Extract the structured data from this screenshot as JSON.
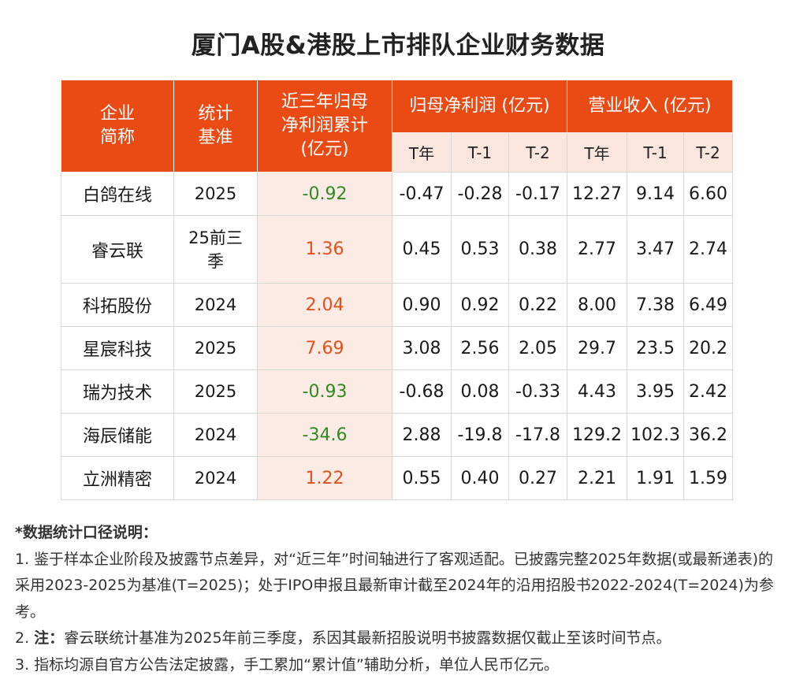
{
  "title": "厦门A股&港股上市排队企业财务数据",
  "headers": {
    "company": "企业简称",
    "basis": "统计基准",
    "cumulative": "近三年归母净利润累计(亿元)",
    "profit_group": "归母净利润 (亿元)",
    "revenue_group": "营业收入 (亿元)",
    "profit_cols": [
      "T年",
      "T-1",
      "T-2"
    ],
    "revenue_cols": [
      "T年",
      "T-1",
      "T-2"
    ]
  },
  "rows": [
    {
      "name": "白鸽在线",
      "basis": "2025",
      "cum": "-0.92",
      "profit": [
        "-0.47",
        "-0.28",
        "-0.17"
      ],
      "revenue": [
        "12.27",
        "9.14",
        "6.60"
      ]
    },
    {
      "name": "睿云联",
      "basis": "25前三季",
      "cum": "1.36",
      "profit": [
        "0.45",
        "0.53",
        "0.38"
      ],
      "revenue": [
        "2.77",
        "3.47",
        "2.74"
      ]
    },
    {
      "name": "科拓股份",
      "basis": "2024",
      "cum": "2.04",
      "profit": [
        "0.90",
        "0.92",
        "0.22"
      ],
      "revenue": [
        "8.00",
        "7.38",
        "6.49"
      ]
    },
    {
      "name": "星宸科技",
      "basis": "2025",
      "cum": "7.69",
      "profit": [
        "3.08",
        "2.56",
        "2.05"
      ],
      "revenue": [
        "29.7",
        "23.5",
        "20.2"
      ]
    },
    {
      "name": "瑞为技术",
      "basis": "2025",
      "cum": "-0.93",
      "profit": [
        "-0.68",
        "0.08",
        "-0.33"
      ],
      "revenue": [
        "4.43",
        "3.95",
        "2.42"
      ]
    },
    {
      "name": "海辰储能",
      "basis": "2024",
      "cum": "-34.6",
      "profit": [
        "2.88",
        "-19.8",
        "-17.8"
      ],
      "revenue": [
        "129.2",
        "102.3",
        "36.2"
      ]
    },
    {
      "name": "立洲精密",
      "basis": "2024",
      "cum": "1.22",
      "profit": [
        "0.55",
        "0.40",
        "0.27"
      ],
      "revenue": [
        "2.21",
        "1.91",
        "1.59"
      ]
    }
  ],
  "notes": {
    "heading": "*数据统计口径说明：",
    "n1": "1. 鉴于样本企业阶段及披露节点差异，对“近三年”时间轴进行了客观适配。已披露完整2025年数据(或最新递表)的采用2023-2025为基准(T=2025)；处于IPO申报且最新审计截至2024年的沿用招股书2022-2024(T=2024)为参考。",
    "n2_prefix": "2. ",
    "n2_bold": "注：",
    "n2_rest": "睿云联统计基准为2025年前三季度，系因其最新招股说明书披露数据仅截止至该时间节点。",
    "n3": "3. 指标均源自官方公告法定披露，手工累加“累计值”辅助分析，单位人民币亿元。"
  },
  "colors": {
    "header_bg": "#ea4a13",
    "subheader_bg": "#fbe6df",
    "cum_bg": "#fcebe5",
    "negative": "#2f8a22",
    "positive_cum": "#e0501a"
  }
}
